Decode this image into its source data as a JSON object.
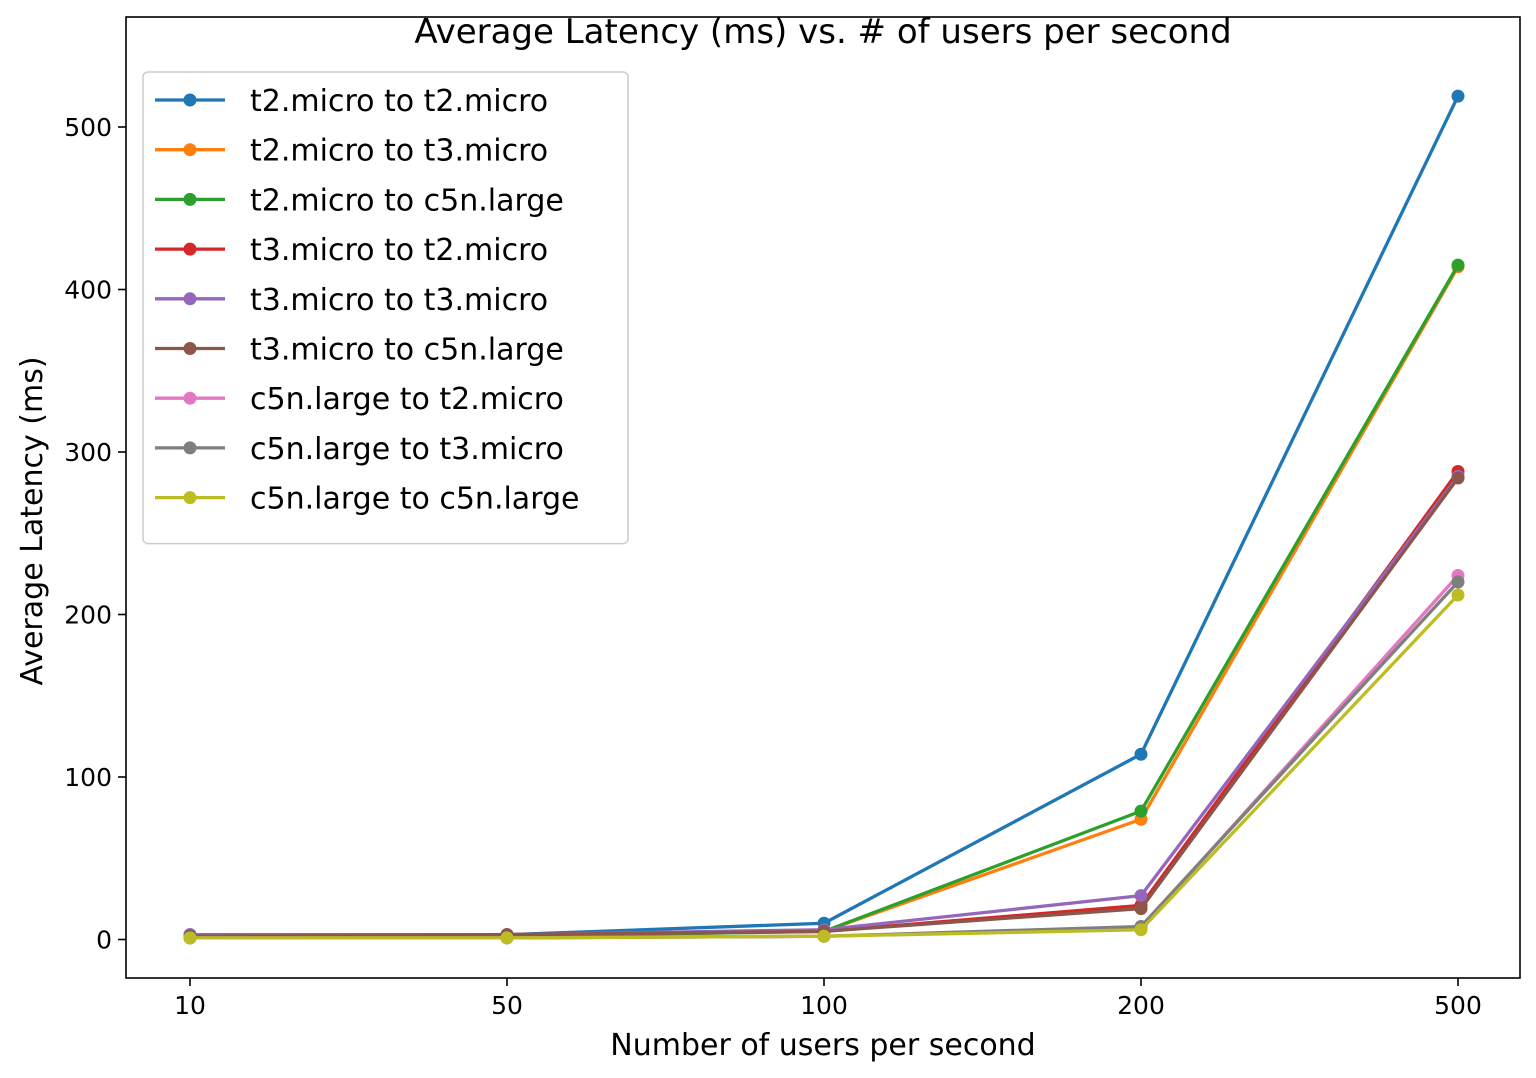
{
  "chart_data": {
    "type": "line",
    "title": "Average Latency (ms) vs. # of users per second",
    "xlabel": "Number of users per second",
    "ylabel": "Average Latency (ms)",
    "categories": [
      "10",
      "50",
      "100",
      "200",
      "500"
    ],
    "ylim": [
      -25,
      545
    ],
    "yticks": [
      0,
      100,
      200,
      300,
      400,
      500
    ],
    "ytick_labels": [
      "0",
      "100",
      "200",
      "300",
      "400",
      "500"
    ],
    "grid": false,
    "legend_position": "top-left",
    "series": [
      {
        "name": "t2.micro to t2.micro",
        "color": "#1f77b4",
        "values": [
          3,
          3,
          10,
          114,
          519
        ]
      },
      {
        "name": "t2.micro to t3.micro",
        "color": "#ff7f0e",
        "values": [
          2,
          2,
          5,
          74,
          414
        ]
      },
      {
        "name": "t2.micro to c5n.large",
        "color": "#2ca02c",
        "values": [
          2,
          2,
          5,
          79,
          415
        ]
      },
      {
        "name": "t3.micro to t2.micro",
        "color": "#d62728",
        "values": [
          2,
          3,
          5,
          21,
          288
        ]
      },
      {
        "name": "t3.micro to t3.micro",
        "color": "#9467bd",
        "values": [
          3,
          3,
          6,
          27,
          285
        ]
      },
      {
        "name": "t3.micro to c5n.large",
        "color": "#8c564b",
        "values": [
          2,
          3,
          5,
          19,
          284
        ]
      },
      {
        "name": "c5n.large to t2.micro",
        "color": "#e377c2",
        "values": [
          1,
          1,
          2,
          7,
          224
        ]
      },
      {
        "name": "c5n.large to t3.micro",
        "color": "#7f7f7f",
        "values": [
          1,
          1,
          2,
          8,
          220
        ]
      },
      {
        "name": "c5n.large to c5n.large",
        "color": "#bcbd22",
        "values": [
          1,
          1,
          2,
          6,
          212
        ]
      }
    ]
  }
}
